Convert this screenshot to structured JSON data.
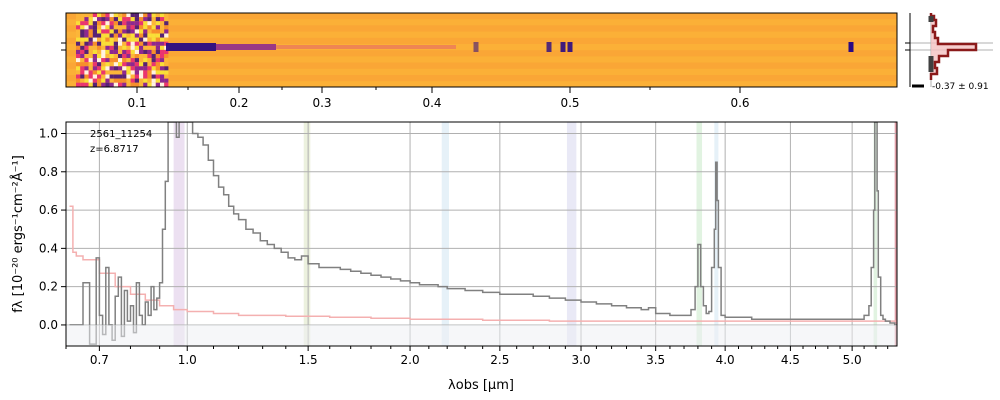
{
  "chart_data": [
    {
      "type": "heatmap",
      "panel": "2d-spectrum",
      "x_axis": {
        "scale": "reciprocal",
        "tick_labels": [
          "0.1",
          "0.2",
          "0.3",
          "0.4",
          "0.5",
          "0.6"
        ],
        "tick_values": [
          0.1,
          0.2,
          0.3,
          0.4,
          0.5,
          0.6
        ]
      },
      "colormap": "plasma",
      "colors": {
        "background": "#fcaa35",
        "trace": "#2a0a84",
        "noise": "#f8e838"
      }
    },
    {
      "type": "line",
      "panel": "cross-dispersion-profile",
      "annotation": "-0.37 ± 0.91",
      "colors": {
        "profile": "#8b1a1a",
        "fill": "#f4c2c2"
      }
    },
    {
      "type": "line",
      "panel": "1d-spectrum",
      "annotations": [
        "2561_11254",
        "z=6.8717"
      ],
      "xlabel": "λobs [μm]",
      "ylabel": "fλ [10⁻²⁰ ergs⁻¹cm⁻²Å⁻¹]",
      "xlim": [
        0.6,
        5.38
      ],
      "ylim": [
        -0.11,
        1.06
      ],
      "x_scale": "sqrt-like",
      "xticks": [
        0.7,
        1.0,
        1.5,
        2.0,
        2.5,
        3.0,
        3.5,
        4.0,
        4.5,
        5.0
      ],
      "xtick_labels": [
        "0.7",
        "1.0",
        "1.5",
        "2.0",
        "2.5",
        "3.0",
        "3.5",
        "4.0",
        "4.5",
        "5.0"
      ],
      "yticks": [
        0.0,
        0.2,
        0.4,
        0.6,
        0.8,
        1.0
      ],
      "ytick_labels": [
        "0.0",
        "0.2",
        "0.4",
        "0.6",
        "0.8",
        "1.0"
      ],
      "grid": true,
      "series": [
        {
          "role": "flux",
          "color": "#808080",
          "x": [
            0.61,
            0.63,
            0.65,
            0.67,
            0.69,
            0.7,
            0.71,
            0.72,
            0.73,
            0.74,
            0.75,
            0.76,
            0.77,
            0.78,
            0.79,
            0.8,
            0.81,
            0.82,
            0.83,
            0.84,
            0.85,
            0.86,
            0.87,
            0.88,
            0.89,
            0.9,
            0.91,
            0.92,
            0.93,
            0.94,
            0.95,
            0.96,
            0.97,
            0.98,
            0.99,
            1.0,
            1.02,
            1.04,
            1.06,
            1.08,
            1.1,
            1.12,
            1.14,
            1.16,
            1.18,
            1.2,
            1.23,
            1.26,
            1.29,
            1.32,
            1.35,
            1.38,
            1.41,
            1.44,
            1.47,
            1.5,
            1.55,
            1.6,
            1.65,
            1.7,
            1.75,
            1.8,
            1.85,
            1.9,
            1.95,
            2.0,
            2.05,
            2.1,
            2.15,
            2.2,
            2.25,
            2.3,
            2.35,
            2.4,
            2.45,
            2.5,
            2.6,
            2.7,
            2.8,
            2.9,
            3.0,
            3.1,
            3.2,
            3.3,
            3.4,
            3.45,
            3.5,
            3.55,
            3.6,
            3.7,
            3.75,
            3.78,
            3.8,
            3.82,
            3.84,
            3.86,
            3.88,
            3.9,
            3.92,
            3.93,
            3.94,
            3.95,
            3.97,
            4.0,
            4.1,
            4.2,
            4.3,
            4.4,
            4.5,
            4.6,
            4.7,
            4.8,
            4.9,
            5.0,
            5.05,
            5.1,
            5.14,
            5.16,
            5.18,
            5.19,
            5.2,
            5.21,
            5.22,
            5.24,
            5.26,
            5.28,
            5.3,
            5.32,
            5.34,
            5.36,
            5.38
          ],
          "y": [
            0.0,
            0.0,
            0.22,
            -0.1,
            0.35,
            0.05,
            -0.05,
            0.3,
            0.0,
            -0.08,
            0.15,
            0.25,
            -0.06,
            0.18,
            0.02,
            0.1,
            -0.04,
            0.22,
            0.05,
            0.0,
            0.12,
            0.05,
            0.2,
            0.08,
            0.14,
            0.22,
            0.5,
            0.75,
            1.06,
            1.06,
            1.06,
            0.98,
            1.06,
            1.06,
            1.06,
            1.06,
            1.0,
            0.98,
            0.94,
            0.86,
            0.78,
            0.72,
            0.68,
            0.62,
            0.58,
            0.55,
            0.5,
            0.48,
            0.44,
            0.42,
            0.4,
            0.38,
            0.35,
            0.34,
            0.36,
            0.32,
            0.3,
            0.3,
            0.29,
            0.28,
            0.27,
            0.26,
            0.25,
            0.24,
            0.23,
            0.22,
            0.21,
            0.21,
            0.2,
            0.19,
            0.19,
            0.18,
            0.18,
            0.17,
            0.17,
            0.16,
            0.16,
            0.15,
            0.14,
            0.13,
            0.12,
            0.11,
            0.1,
            0.09,
            0.08,
            0.09,
            0.06,
            0.06,
            0.05,
            0.05,
            0.08,
            0.2,
            0.42,
            0.2,
            0.1,
            0.06,
            0.07,
            0.3,
            0.5,
            0.85,
            0.65,
            0.3,
            0.05,
            0.04,
            0.04,
            0.03,
            0.03,
            0.03,
            0.03,
            0.03,
            0.03,
            0.03,
            0.03,
            0.03,
            0.03,
            0.05,
            0.1,
            0.3,
            0.6,
            1.06,
            1.06,
            0.7,
            0.25,
            0.05,
            0.03,
            0.02,
            0.02,
            0.01,
            0.01,
            0.0,
            0.0
          ]
        },
        {
          "role": "error",
          "color": "#f4b0b0",
          "x": [
            0.61,
            0.62,
            0.63,
            0.65,
            0.7,
            0.75,
            0.8,
            0.85,
            0.9,
            0.95,
            1.0,
            1.1,
            1.2,
            1.4,
            1.6,
            1.8,
            2.0,
            2.4,
            2.8,
            3.2,
            3.6,
            4.0,
            4.5,
            5.0,
            5.2,
            5.38
          ],
          "y": [
            0.62,
            0.38,
            0.36,
            0.34,
            0.27,
            0.2,
            0.16,
            0.13,
            0.1,
            0.08,
            0.07,
            0.06,
            0.05,
            0.045,
            0.04,
            0.035,
            0.03,
            0.025,
            0.02,
            0.02,
            0.02,
            0.02,
            0.02,
            0.02,
            0.02,
            0.02
          ]
        }
      ],
      "highlight_bands": [
        {
          "x": [
            0.95,
            0.99
          ],
          "color": "#c9a6d6"
        },
        {
          "x": [
            1.48,
            1.51
          ],
          "color": "#c8d8a0"
        },
        {
          "x": [
            2.17,
            2.21
          ],
          "color": "#b7d7ec"
        },
        {
          "x": [
            2.91,
            2.97
          ],
          "color": "#c0c0e6"
        },
        {
          "x": [
            3.79,
            3.83
          ],
          "color": "#a8dca8"
        },
        {
          "x": [
            3.92,
            3.95
          ],
          "color": "#b7d7ec"
        },
        {
          "x": [
            5.18,
            5.21
          ],
          "color": "#a8dca8"
        },
        {
          "x": [
            5.36,
            5.38
          ],
          "color": "#c85060"
        }
      ]
    }
  ]
}
